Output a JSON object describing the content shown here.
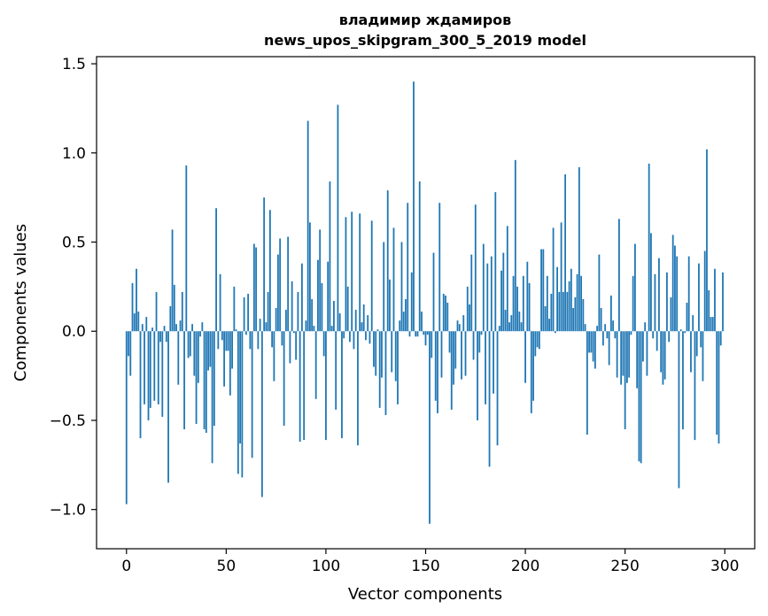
{
  "chart_data": {
    "type": "bar",
    "title": "владимир ждамиров",
    "subtitle": "news_upos_skipgram_300_5_2019 model",
    "xlabel": "Vector components",
    "ylabel": "Components values",
    "xlim": [
      -15,
      315
    ],
    "ylim": [
      -1.22,
      1.54
    ],
    "xticks": [
      0,
      50,
      100,
      150,
      200,
      250,
      300
    ],
    "xtick_labels": [
      "0",
      "50",
      "100",
      "150",
      "200",
      "250",
      "300"
    ],
    "yticks": [
      -1.0,
      -0.5,
      0.0,
      0.5,
      1.0,
      1.5
    ],
    "ytick_labels": [
      "−1.0",
      "−0.5",
      "0.0",
      "0.5",
      "1.0",
      "1.5"
    ],
    "bar_color": "#1f77b4",
    "grid": false,
    "legend": "none",
    "x": "0..299",
    "values": [
      -0.97,
      -0.14,
      -0.25,
      0.27,
      0.1,
      0.35,
      0.11,
      -0.6,
      0.04,
      -0.41,
      0.08,
      -0.5,
      -0.43,
      0.02,
      -0.39,
      0.22,
      -0.41,
      -0.06,
      -0.48,
      0.03,
      -0.06,
      -0.85,
      0.14,
      0.57,
      0.26,
      0.04,
      -0.3,
      0.06,
      0.22,
      -0.55,
      0.93,
      -0.15,
      -0.14,
      0.04,
      -0.25,
      -0.52,
      -0.29,
      -0.03,
      0.05,
      -0.55,
      -0.57,
      -0.22,
      -0.2,
      -0.74,
      -0.53,
      0.69,
      -0.1,
      0.32,
      -0.05,
      -0.31,
      -0.11,
      -0.11,
      -0.36,
      -0.21,
      0.25,
      0.01,
      -0.8,
      -0.63,
      -0.82,
      0.19,
      -0.02,
      0.21,
      -0.1,
      -0.71,
      0.49,
      0.47,
      -0.1,
      0.07,
      -0.93,
      0.75,
      0.05,
      0.22,
      0.68,
      -0.09,
      -0.28,
      0.13,
      0.43,
      0.52,
      -0.08,
      -0.53,
      0.12,
      0.53,
      -0.18,
      0.28,
      -0.01,
      -0.16,
      0.22,
      -0.62,
      0.38,
      -0.61,
      0.06,
      1.18,
      0.61,
      0.18,
      0.03,
      -0.38,
      0.4,
      0.57,
      0.27,
      -0.14,
      -0.61,
      0.39,
      0.84,
      0.03,
      0.17,
      -0.44,
      1.27,
      0.1,
      -0.6,
      -0.04,
      0.64,
      0.25,
      -0.06,
      0.67,
      -0.1,
      0.12,
      -0.64,
      0.66,
      0.05,
      0.15,
      -0.05,
      0.09,
      -0.07,
      0.62,
      -0.2,
      -0.25,
      0.01,
      -0.43,
      -0.26,
      0.5,
      -0.47,
      0.79,
      0.29,
      -0.23,
      0.58,
      -0.28,
      -0.41,
      0.06,
      0.5,
      0.11,
      0.18,
      0.72,
      -0.03,
      0.33,
      1.4,
      -0.03,
      -0.03,
      0.84,
      0.11,
      -0.02,
      -0.08,
      -0.02,
      -1.08,
      -0.15,
      0.44,
      -0.39,
      -0.46,
      0.72,
      -0.26,
      0.21,
      0.2,
      0.16,
      -0.12,
      -0.44,
      -0.3,
      -0.21,
      0.06,
      0.04,
      -0.27,
      0.09,
      -0.25,
      0.25,
      0.15,
      0.43,
      -0.16,
      0.71,
      -0.5,
      -0.12,
      -0.02,
      0.49,
      -0.41,
      0.38,
      -0.76,
      0.42,
      -0.35,
      0.78,
      -0.64,
      0.03,
      0.34,
      0.44,
      0.12,
      0.59,
      0.05,
      0.09,
      0.31,
      0.96,
      0.25,
      0.11,
      0.05,
      0.31,
      -0.29,
      0.39,
      0.27,
      -0.46,
      -0.39,
      -0.14,
      -0.09,
      -0.1,
      0.46,
      0.46,
      0.14,
      0.31,
      0.07,
      0.21,
      0.58,
      -0.01,
      0.36,
      0.22,
      0.61,
      0.22,
      0.88,
      0.22,
      0.28,
      0.35,
      0.13,
      0.19,
      0.32,
      0.92,
      0.31,
      0.18,
      0.04,
      -0.58,
      -0.12,
      -0.12,
      -0.17,
      -0.21,
      0.03,
      0.43,
      0.13,
      -0.08,
      0.04,
      -0.04,
      -0.19,
      0.2,
      0.06,
      -0.04,
      -0.26,
      0.63,
      -0.3,
      -0.25,
      -0.55,
      -0.29,
      -0.26,
      -0.02,
      0.31,
      0.49,
      -0.32,
      -0.73,
      -0.74,
      -0.17,
      0.05,
      -0.25,
      0.94,
      0.55,
      -0.04,
      0.32,
      -0.11,
      0.41,
      -0.23,
      -0.3,
      -0.27,
      0.33,
      -0.06,
      0.19,
      0.54,
      0.48,
      0.42,
      -0.88,
      0.01,
      -0.55,
      -0.01,
      0.16,
      0.42,
      -0.23,
      0.09,
      -0.61,
      -0.14,
      0.38,
      -0.09,
      -0.28,
      0.45,
      1.02,
      0.23,
      0.08,
      0.08,
      0.35,
      -0.58,
      -0.63,
      -0.08,
      0.33
    ]
  }
}
